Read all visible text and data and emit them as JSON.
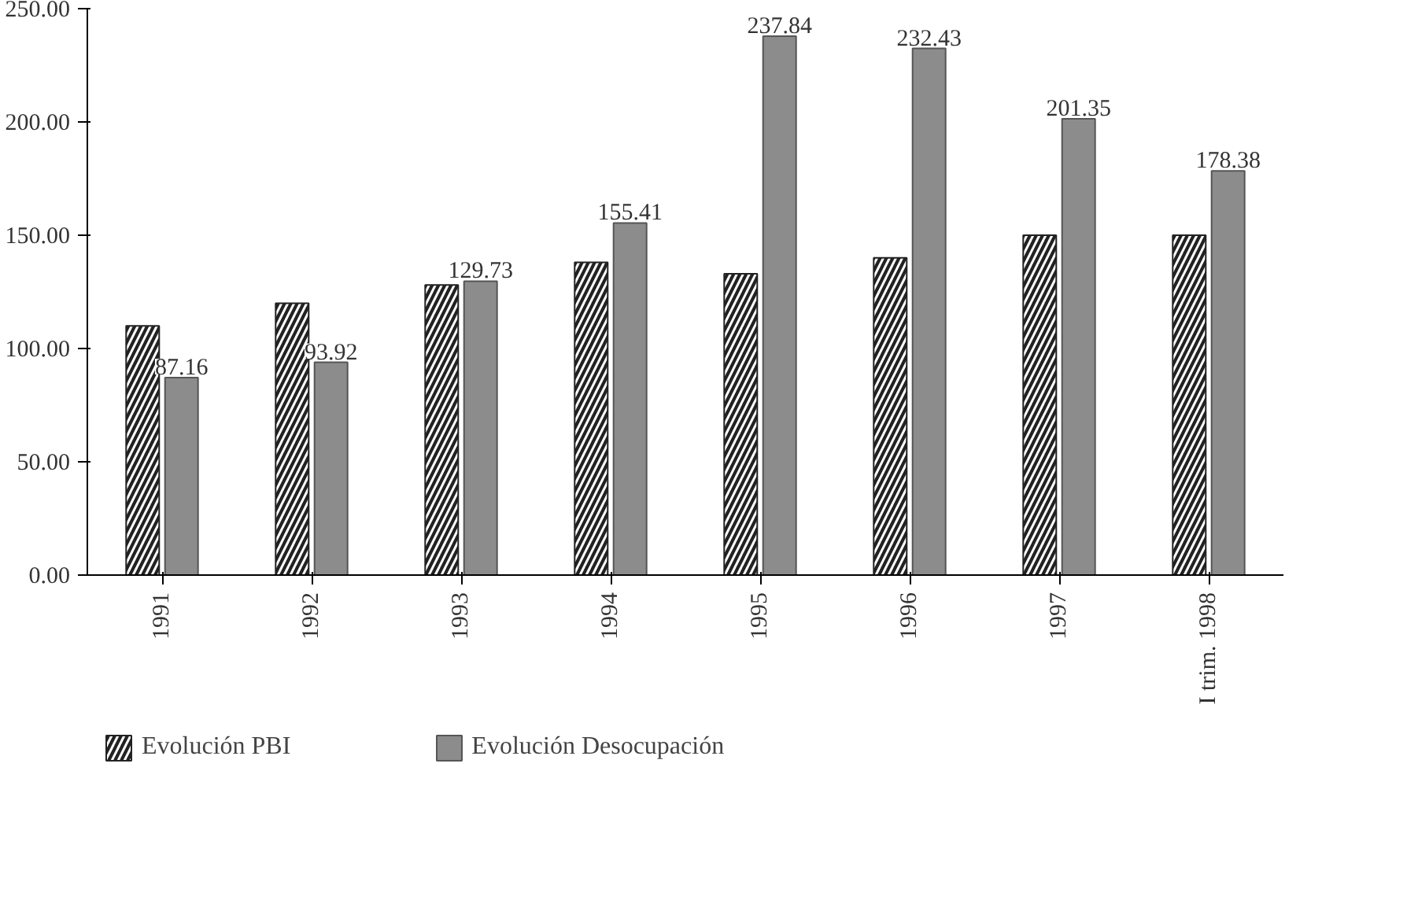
{
  "chart_data": {
    "type": "bar",
    "categories": [
      "1991",
      "1992",
      "1993",
      "1994",
      "1995",
      "1996",
      "1997",
      "I trim. 1998"
    ],
    "series": [
      {
        "name": "Evolución PBI",
        "color": "#222222",
        "values": [
          110,
          120,
          128,
          138,
          133,
          140,
          150,
          150
        ]
      },
      {
        "name": "Evolución Desocupación",
        "color": "#8c8c8c",
        "values": [
          87.16,
          93.92,
          129.73,
          155.41,
          237.84,
          232.43,
          201.35,
          178.38
        ],
        "value_labels": [
          "87.16",
          "93.92",
          "129.73",
          "155.41",
          "237.84",
          "232.43",
          "201.35",
          "178.38"
        ]
      }
    ],
    "ylim": [
      0,
      250
    ],
    "yticks": [
      {
        "value": 0,
        "label": "0.00"
      },
      {
        "value": 50,
        "label": "50.00"
      },
      {
        "value": 100,
        "label": "100.00"
      },
      {
        "value": 150,
        "label": "150.00"
      },
      {
        "value": 200,
        "label": "200.00"
      },
      {
        "value": 250,
        "label": "250.00"
      }
    ],
    "legend": "bottom"
  }
}
